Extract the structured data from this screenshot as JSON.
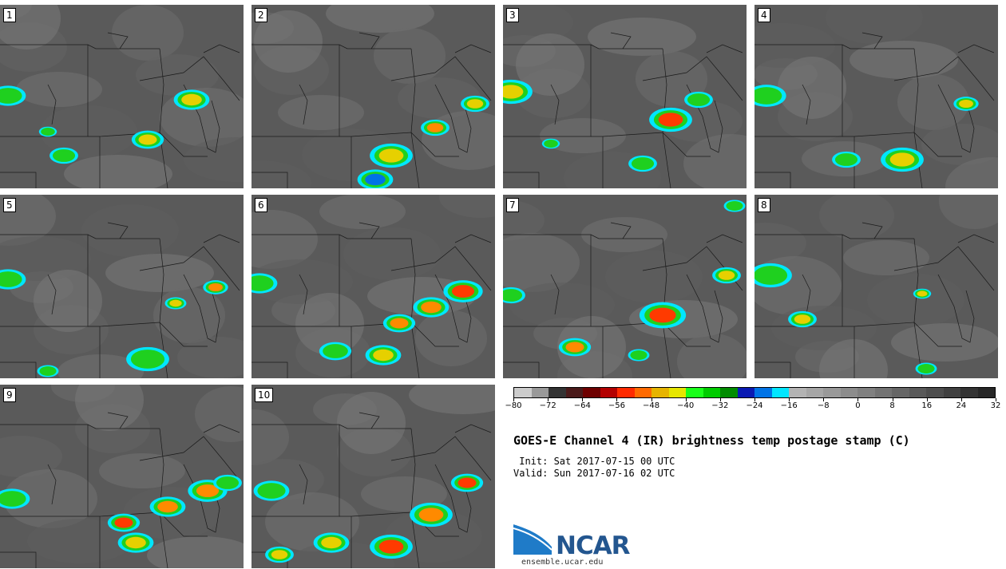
{
  "panels": [
    {
      "label": "1"
    },
    {
      "label": "2"
    },
    {
      "label": "3"
    },
    {
      "label": "4"
    },
    {
      "label": "5"
    },
    {
      "label": "6"
    },
    {
      "label": "7"
    },
    {
      "label": "8"
    },
    {
      "label": "9"
    },
    {
      "label": "10"
    }
  ],
  "colorbar": {
    "colors": [
      "#cccccc",
      "#999999",
      "#333333",
      "#4a1a1a",
      "#6e0000",
      "#b30000",
      "#ff2a00",
      "#ff6a00",
      "#e6b400",
      "#e6e600",
      "#1aff1a",
      "#00cc00",
      "#008c00",
      "#0a1ab3",
      "#0073e6",
      "#00e6ff",
      "#b3b3b3",
      "#a6a6a6",
      "#999999",
      "#8c8c8c",
      "#808080",
      "#737373",
      "#666666",
      "#595959",
      "#4d4d4d",
      "#404040",
      "#333333",
      "#262626"
    ],
    "tick_labels": [
      "−80",
      "−72",
      "−64",
      "−56",
      "−48",
      "−40",
      "−32",
      "−24",
      "−16",
      "−8",
      "0",
      "8",
      "16",
      "24",
      "32"
    ]
  },
  "title": "GOES-E Channel 4 (IR) brightness temp postage stamp (C)",
  "init": " Init: Sat 2017-07-15 00 UTC",
  "valid": "Valid: Sun 2017-07-16 02 UTC",
  "logo": {
    "text": "NCAR",
    "url": "ensemble.ucar.edu"
  }
}
